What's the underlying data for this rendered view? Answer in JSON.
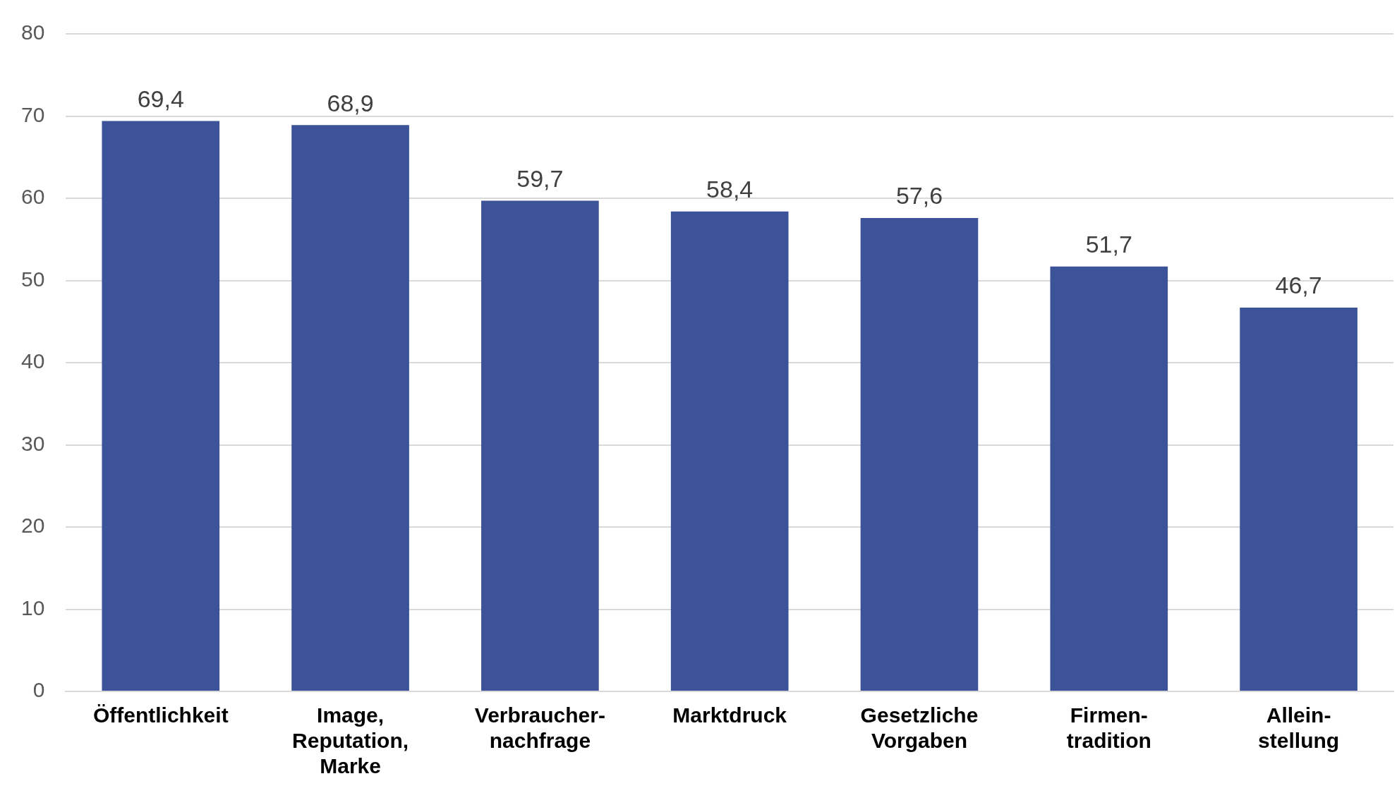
{
  "chart_data": {
    "type": "bar",
    "categories": [
      "Öffentlichkeit",
      "Image,\nReputation,\nMarke",
      "Verbraucher-\nnachfrage",
      "Marktdruck",
      "Gesetzliche\nVorgaben",
      "Firmen-\ntradition",
      "Allein-\nstellung"
    ],
    "values": [
      69.4,
      68.9,
      59.7,
      58.4,
      57.6,
      51.7,
      46.7
    ],
    "value_labels": [
      "69,4",
      "68,9",
      "59,7",
      "58,4",
      "57,6",
      "51,7",
      "46,7"
    ],
    "color": "#3c5399",
    "ylim": [
      0,
      80
    ],
    "yticks": [
      0,
      10,
      20,
      30,
      40,
      50,
      60,
      70,
      80
    ],
    "grid": "y",
    "legend": false
  }
}
